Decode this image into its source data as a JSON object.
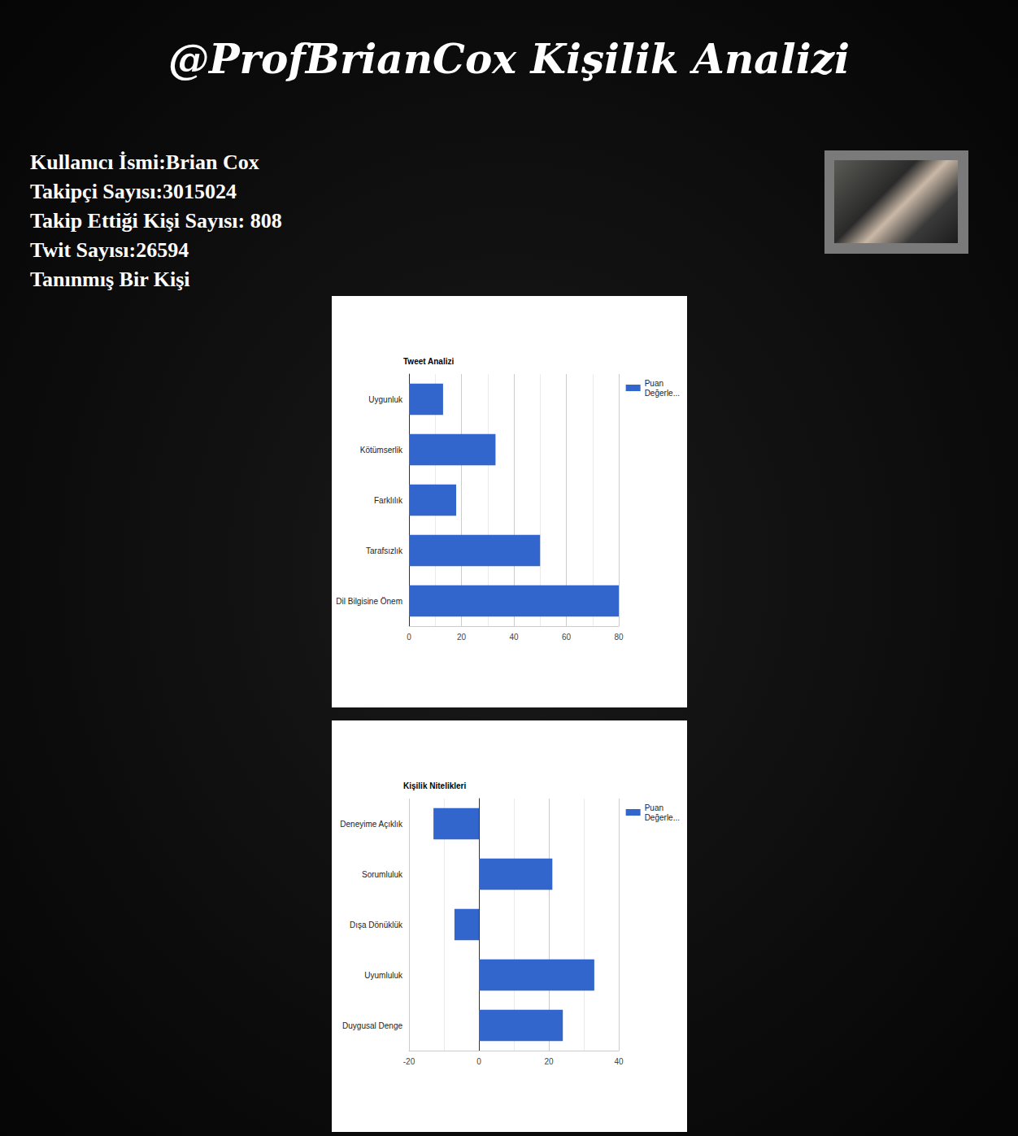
{
  "page": {
    "title": "@ProfBrianCox Kişilik Analizi",
    "info": [
      "Kullanıcı İsmi:Brian Cox",
      "Takipçi Sayısı:3015024",
      "Takip Ettiği Kişi Sayısı: 808",
      "Twit Sayısı:26594",
      "Tanınmış Bir Kişi"
    ]
  },
  "chart_data": [
    {
      "type": "bar",
      "title": "Tweet Analizi",
      "orientation": "horizontal",
      "categories": [
        "Uygunluk",
        "Kötümserlik",
        "Farklılık",
        "Tarafsızlık",
        "Dil Bilgisine Önem"
      ],
      "series": [
        {
          "name": "Puan Değerle...",
          "color": "#3366cc",
          "values": [
            13,
            33,
            18,
            50,
            80
          ]
        }
      ],
      "xlim": [
        0,
        80
      ],
      "xticks": [
        0,
        20,
        40,
        60,
        80
      ],
      "grid": true,
      "legend": "top-right"
    },
    {
      "type": "bar",
      "title": "Kişilik Nitelikleri",
      "orientation": "horizontal",
      "categories": [
        "Deneyime Açıklık",
        "Sorumluluk",
        "Dışa Dönüklük",
        "Uyumluluk",
        "Duygusal Denge"
      ],
      "series": [
        {
          "name": "Puan Değerle...",
          "color": "#3366cc",
          "values": [
            -13,
            21,
            -7,
            33,
            24
          ]
        }
      ],
      "xlim": [
        -20,
        40
      ],
      "xticks": [
        -20,
        0,
        20,
        40
      ],
      "grid": true,
      "legend": "top-right"
    }
  ]
}
